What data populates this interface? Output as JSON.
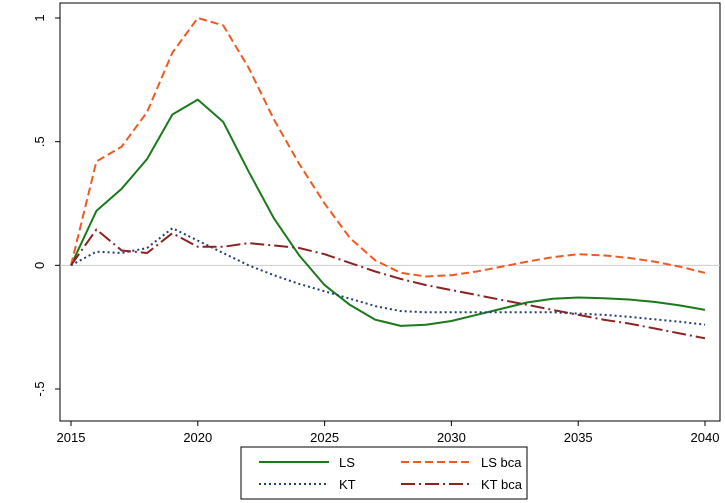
{
  "chart_data": {
    "type": "line",
    "title": "",
    "xlabel": "",
    "ylabel": "",
    "xlim": [
      2015,
      2040
    ],
    "ylim": [
      -0.5,
      1
    ],
    "x_ticks": [
      2015,
      2020,
      2025,
      2030,
      2035,
      2040
    ],
    "y_ticks": [
      -0.5,
      0,
      0.5,
      1
    ],
    "y_tick_labels": [
      "-.5",
      "0",
      ".5",
      "1"
    ],
    "zero_line": true,
    "grid": false,
    "legend_position": "bottom",
    "x": [
      2015,
      2016,
      2017,
      2018,
      2019,
      2020,
      2021,
      2022,
      2023,
      2024,
      2025,
      2026,
      2027,
      2028,
      2029,
      2030,
      2031,
      2032,
      2033,
      2034,
      2035,
      2036,
      2037,
      2038,
      2039,
      2040
    ],
    "series": [
      {
        "name": "LS",
        "color": "#1a7a1a",
        "dash": "solid",
        "values": [
          0.0,
          0.22,
          0.31,
          0.43,
          0.61,
          0.67,
          0.58,
          0.38,
          0.19,
          0.04,
          -0.08,
          -0.16,
          -0.22,
          -0.245,
          -0.24,
          -0.225,
          -0.2,
          -0.175,
          -0.15,
          -0.135,
          -0.13,
          -0.133,
          -0.138,
          -0.148,
          -0.162,
          -0.18
        ]
      },
      {
        "name": "LS bca",
        "color": "#f05a22",
        "dash": "dash",
        "values": [
          0.0,
          0.42,
          0.48,
          0.62,
          0.86,
          1.0,
          0.97,
          0.8,
          0.59,
          0.41,
          0.25,
          0.11,
          0.02,
          -0.03,
          -0.045,
          -0.04,
          -0.025,
          -0.005,
          0.015,
          0.033,
          0.045,
          0.04,
          0.03,
          0.015,
          -0.005,
          -0.03
        ]
      },
      {
        "name": "KT",
        "color": "#1f3d7a",
        "dash": "dot",
        "values": [
          0.0,
          0.055,
          0.05,
          0.07,
          0.15,
          0.1,
          0.05,
          0.0,
          -0.04,
          -0.075,
          -0.105,
          -0.135,
          -0.165,
          -0.185,
          -0.19,
          -0.19,
          -0.19,
          -0.19,
          -0.19,
          -0.19,
          -0.195,
          -0.2,
          -0.208,
          -0.218,
          -0.228,
          -0.24
        ]
      },
      {
        "name": "KT bca",
        "color": "#8b2323",
        "dash": "dashdot",
        "values": [
          0.0,
          0.145,
          0.06,
          0.05,
          0.13,
          0.075,
          0.075,
          0.09,
          0.08,
          0.07,
          0.045,
          0.01,
          -0.025,
          -0.055,
          -0.08,
          -0.1,
          -0.12,
          -0.14,
          -0.16,
          -0.18,
          -0.2,
          -0.22,
          -0.235,
          -0.255,
          -0.275,
          -0.295
        ]
      }
    ]
  }
}
